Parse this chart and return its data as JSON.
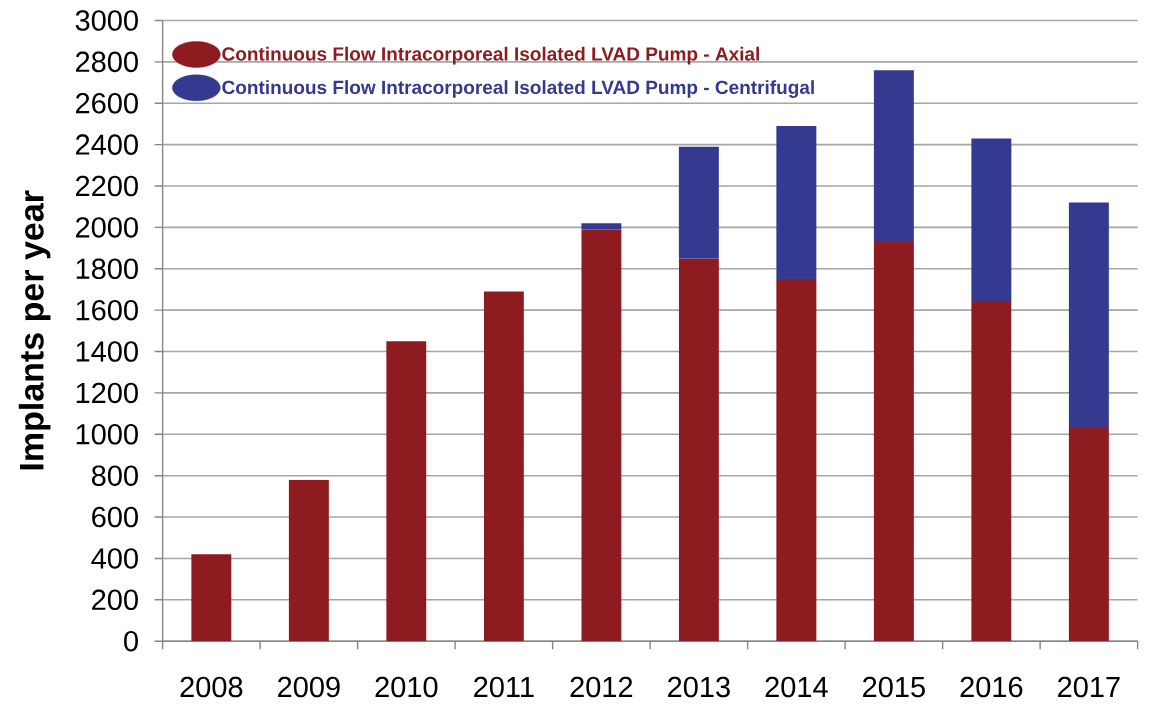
{
  "chart_data": {
    "type": "bar",
    "stacked": true,
    "categories": [
      "2008",
      "2009",
      "2010",
      "2011",
      "2012",
      "2013",
      "2014",
      "2015",
      "2016",
      "2017"
    ],
    "series": [
      {
        "name": "Continuous Flow Intracorporeal Isolated LVAD Pump - Axial",
        "color": "#8e1b1f",
        "values": [
          420,
          780,
          1450,
          1690,
          1990,
          1850,
          1750,
          1930,
          1640,
          1030
        ]
      },
      {
        "name": "Continuous Flow Intracorporeal Isolated LVAD Pump - Centrifugal",
        "color": "#343a8f",
        "values": [
          null,
          null,
          null,
          null,
          30,
          540,
          740,
          830,
          790,
          1090
        ]
      }
    ],
    "ylabel": "Implants per year",
    "ylim": [
      0,
      3000
    ],
    "yticks": [
      0,
      200,
      400,
      600,
      800,
      1000,
      1200,
      1400,
      1600,
      1800,
      2000,
      2200,
      2400,
      2600,
      2800,
      3000
    ],
    "grid": "y",
    "legend": "top left"
  }
}
